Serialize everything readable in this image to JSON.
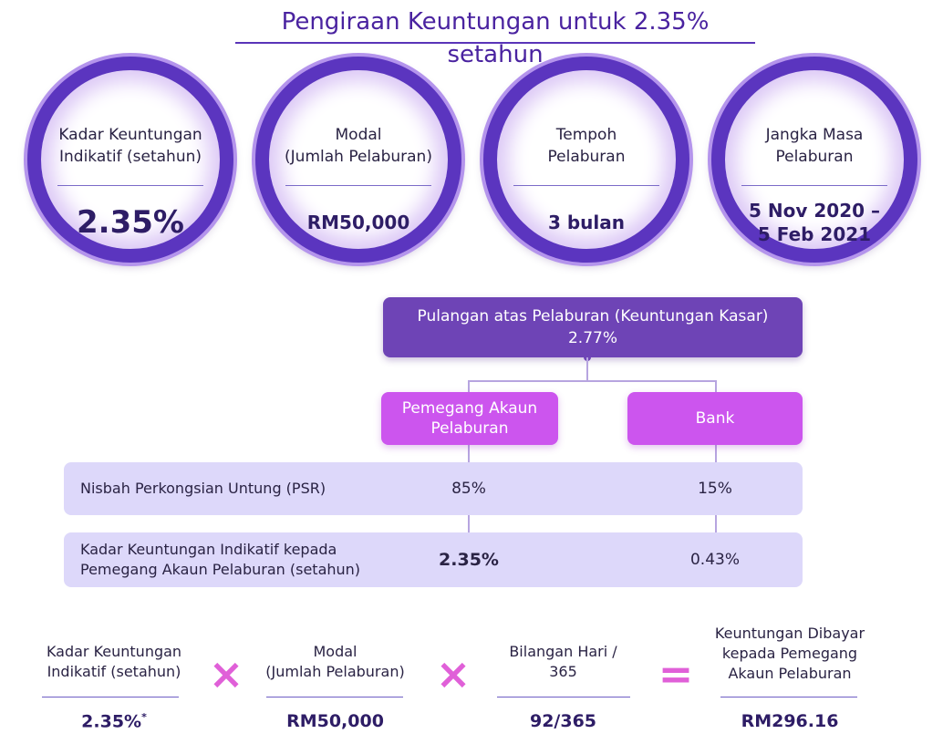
{
  "title": "Pengiraan Keuntungan untuk 2.35% setahun",
  "circles": [
    {
      "label_1": "Kadar Keuntungan",
      "label_2": "Indikatif (setahun)",
      "value": "2.35%"
    },
    {
      "label_1": "Modal",
      "label_2": "(Jumlah Pelaburan)",
      "value": "RM50,000"
    },
    {
      "label_1": "Tempoh",
      "label_2": "Pelaburan",
      "value": "3 bulan"
    },
    {
      "label_1": "Jangka Masa",
      "label_2": "Pelaburan",
      "value_1": "5 Nov 2020 –",
      "value_2": "5 Feb 2021"
    }
  ],
  "return_box": {
    "label": "Pulangan atas Pelaburan (Keuntungan Kasar)",
    "value": "2.77%"
  },
  "parties": {
    "holder_1": "Pemegang Akaun",
    "holder_2": "Pelaburan",
    "bank": "Bank"
  },
  "psr_row": {
    "label": "Nisbah Perkongsian Untung (PSR)",
    "holder": "85%",
    "bank": "15%"
  },
  "rate_row": {
    "label_1": "Kadar Keuntungan Indikatif kepada",
    "label_2": "Pemegang Akaun Pelaburan (setahun)",
    "holder": "2.35%",
    "bank": "0.43%"
  },
  "formula": {
    "rate_label_1": "Kadar Keuntungan",
    "rate_label_2": "Indikatif (setahun)",
    "rate_value": "2.35%",
    "rate_note": "*",
    "capital_label_1": "Modal",
    "capital_label_2": "(Jumlah Pelaburan)",
    "capital_value": "RM50,000",
    "days_label_1": "Bilangan Hari /",
    "days_label_2": "365",
    "days_value": "92/365",
    "profit_label_1": "Keuntungan Dibayar",
    "profit_label_2": "kepada Pemegang",
    "profit_label_3": "Akaun Pelaburan",
    "profit_value": "RM296.16",
    "multiply": "×",
    "equals": "="
  },
  "colors": {
    "purple": "#5b35bf",
    "dark_purple": "#6e44b6",
    "pink": "#cc55ee",
    "lavender": "#ddd8fa",
    "operator": "#e060d8"
  }
}
